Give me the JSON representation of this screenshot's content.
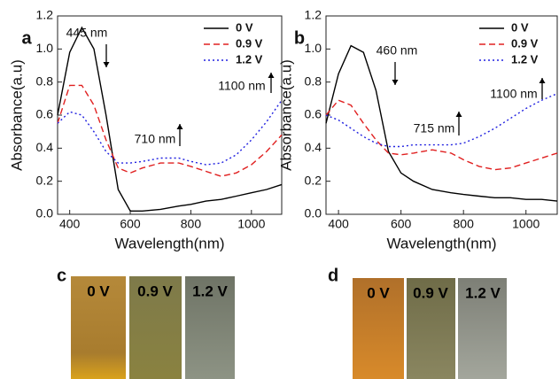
{
  "chart_data": [
    {
      "type": "line",
      "panel_label": "a",
      "x_label": "Wavelength(nm)",
      "y_label": "Absorbance(a.u)",
      "x": [
        360,
        400,
        440,
        480,
        520,
        560,
        600,
        640,
        700,
        760,
        800,
        850,
        900,
        950,
        1000,
        1050,
        1100
      ],
      "series": [
        {
          "name": "0 V",
          "color": "#000000",
          "style": "solid",
          "values": [
            0.6,
            0.98,
            1.13,
            1.0,
            0.6,
            0.15,
            0.02,
            0.02,
            0.03,
            0.05,
            0.06,
            0.08,
            0.09,
            0.11,
            0.13,
            0.15,
            0.18
          ]
        },
        {
          "name": "0.9 V",
          "color": "#e02020",
          "style": "dashed",
          "values": [
            0.55,
            0.78,
            0.78,
            0.66,
            0.45,
            0.28,
            0.25,
            0.28,
            0.31,
            0.31,
            0.29,
            0.26,
            0.23,
            0.25,
            0.3,
            0.38,
            0.48
          ]
        },
        {
          "name": "1.2 V",
          "color": "#2020e0",
          "style": "dotted",
          "values": [
            0.55,
            0.62,
            0.6,
            0.5,
            0.38,
            0.31,
            0.31,
            0.32,
            0.34,
            0.34,
            0.32,
            0.3,
            0.31,
            0.36,
            0.45,
            0.56,
            0.69
          ]
        }
      ],
      "annotations": [
        {
          "text": "445 nm",
          "direction": "down"
        },
        {
          "text": "710 nm",
          "direction": "up"
        },
        {
          "text": "1100 nm",
          "direction": "up"
        }
      ],
      "xlim": [
        360,
        1100
      ],
      "xticks": [
        400,
        600,
        800,
        1000
      ],
      "ylim": [
        0,
        1.2
      ],
      "yticks": [
        {
          "value": 0,
          "label": "0.0"
        },
        0.2,
        0.4,
        0.6,
        0.8,
        {
          "value": 1,
          "label": "1.0"
        },
        1.2
      ],
      "legend": "upper right"
    },
    {
      "type": "line",
      "panel_label": "b",
      "x_label": "Wavelength(nm)",
      "y_label": "Absorbance(a.u)",
      "x": [
        360,
        400,
        440,
        480,
        520,
        560,
        600,
        640,
        700,
        760,
        800,
        850,
        900,
        950,
        1000,
        1050,
        1100
      ],
      "series": [
        {
          "name": "0 V",
          "color": "#000000",
          "style": "solid",
          "values": [
            0.55,
            0.85,
            1.02,
            0.98,
            0.75,
            0.38,
            0.25,
            0.2,
            0.15,
            0.13,
            0.12,
            0.11,
            0.1,
            0.1,
            0.09,
            0.09,
            0.08
          ]
        },
        {
          "name": "0.9 V",
          "color": "#e02020",
          "style": "dashed",
          "values": [
            0.6,
            0.69,
            0.66,
            0.55,
            0.45,
            0.37,
            0.36,
            0.37,
            0.39,
            0.37,
            0.33,
            0.29,
            0.27,
            0.28,
            0.31,
            0.34,
            0.37
          ]
        },
        {
          "name": "1.2 V",
          "color": "#2020e0",
          "style": "dotted",
          "values": [
            0.6,
            0.57,
            0.52,
            0.47,
            0.43,
            0.41,
            0.41,
            0.42,
            0.42,
            0.42,
            0.43,
            0.47,
            0.52,
            0.58,
            0.64,
            0.69,
            0.73
          ]
        }
      ],
      "annotations": [
        {
          "text": "460 nm",
          "direction": "down"
        },
        {
          "text": "715 nm",
          "direction": "up"
        },
        {
          "text": "1100 nm",
          "direction": "up"
        }
      ],
      "xlim": [
        360,
        1100
      ],
      "xticks": [
        400,
        600,
        800,
        1000
      ],
      "ylim": [
        0,
        1.2
      ],
      "yticks": [
        {
          "value": 0,
          "label": "0.0"
        },
        0.2,
        0.4,
        0.6,
        0.8,
        {
          "value": 1,
          "label": "1.0"
        },
        1.2
      ],
      "legend": "upper right"
    }
  ],
  "photos": [
    {
      "panel_label": "c",
      "vials": [
        "0 V",
        "0.9 V",
        "1.2 V"
      ]
    },
    {
      "panel_label": "d",
      "vials": [
        "0 V",
        "0.9 V",
        "1.2 V"
      ]
    }
  ]
}
